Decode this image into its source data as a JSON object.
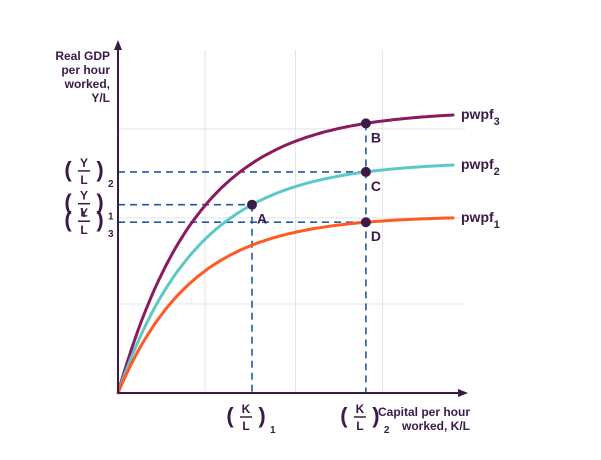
{
  "chart_data": {
    "type": "line",
    "ylabel_lines": [
      "Real GDP",
      "per hour",
      "worked,",
      "Y/L"
    ],
    "xlabel_lines": [
      "Capital per hour",
      "worked, K/L"
    ],
    "grid": true,
    "series": [
      {
        "name": "pwpf",
        "sub": "3",
        "color": "#8b1a5e",
        "k": 0.75,
        "level": 1.0
      },
      {
        "name": "pwpf",
        "sub": "2",
        "color": "#5cc9c6",
        "k": 0.75,
        "level": 0.82
      },
      {
        "name": "pwpf",
        "sub": "1",
        "color": "#ff5a1f",
        "k": 0.7,
        "level": 0.63
      }
    ],
    "points": [
      {
        "label": "A",
        "x": 0.4,
        "series": 1
      },
      {
        "label": "B",
        "x": 0.74,
        "series": 0
      },
      {
        "label": "C",
        "x": 0.74,
        "series": 1
      },
      {
        "label": "D",
        "x": 0.74,
        "series": 2
      }
    ],
    "x_ticks": [
      {
        "num": "K",
        "den": "L",
        "sub": "1",
        "x": 0.4
      },
      {
        "num": "K",
        "den": "L",
        "sub": "2",
        "x": 0.74
      }
    ],
    "y_ticks": [
      {
        "num": "Y",
        "den": "L",
        "sub": "3",
        "point": "D"
      },
      {
        "num": "Y",
        "den": "L",
        "sub": "2",
        "point": "C"
      },
      {
        "num": "Y",
        "den": "L",
        "sub": "1",
        "point": "A"
      }
    ],
    "colors": {
      "axis": "#3b1a49",
      "guide": "#1e5aa8",
      "grid": "#e3e3ea",
      "point": "#3b1a49"
    }
  }
}
